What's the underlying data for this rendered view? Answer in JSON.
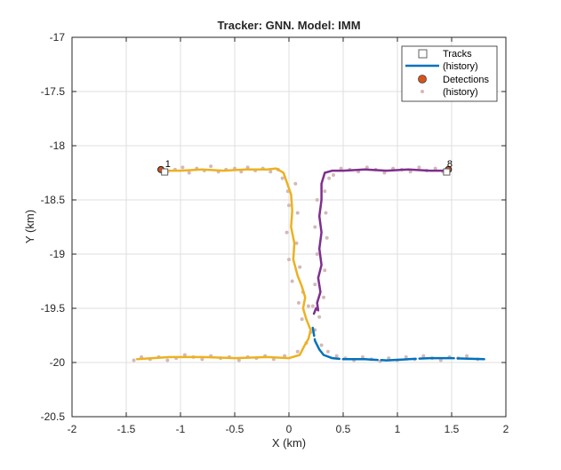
{
  "chart_data": {
    "type": "line",
    "title": "Tracker: GNN. Model: IMM",
    "xlabel": "X (km)",
    "ylabel": "Y (km)",
    "xlim": [
      -2,
      2
    ],
    "ylim": [
      -20.5,
      -17
    ],
    "xticks": [
      -2,
      -1.5,
      -1,
      -0.5,
      0,
      0.5,
      1,
      1.5,
      2
    ],
    "xtick_labels": [
      "-2",
      "-1.5",
      "-1",
      "-0.5",
      "0",
      "0.5",
      "1",
      "1.5",
      "2"
    ],
    "yticks": [
      -20.5,
      -20,
      -19.5,
      -19,
      -18.5,
      -18,
      -17.5,
      -17
    ],
    "ytick_labels": [
      "-20.5",
      "-20",
      "-19.5",
      "-19",
      "-18.5",
      "-18",
      "-17.5",
      "-17"
    ],
    "grid": true,
    "legend_position": "top-right",
    "legend": [
      {
        "label": "Tracks",
        "marker": "square"
      },
      {
        "label": "(history)",
        "marker": "line"
      },
      {
        "label": "Detections",
        "marker": "filled-circle"
      },
      {
        "label": "(history)",
        "marker": "small-dot"
      }
    ],
    "colors": {
      "axes": "#262626",
      "grid": "#dfdfdf",
      "track_1": "#edb120",
      "track_8": "#7e2f8e",
      "track_other": "#0072bd",
      "detection": "#d95319",
      "detection_history": "#d5b8b8"
    },
    "series": [
      {
        "name": "1",
        "x": [
          -1.15,
          -1.0,
          -0.8,
          -0.6,
          -0.4,
          -0.2,
          -0.12,
          -0.05,
          0.02,
          0.03,
          0.02,
          0.05,
          0.04,
          0.08,
          0.12,
          0.15,
          0.13,
          0.16,
          0.2,
          0.18,
          0.14,
          0.1,
          0.0,
          -0.2,
          -0.5,
          -0.8,
          -1.1,
          -1.4
        ],
        "y": [
          -18.23,
          -18.23,
          -18.22,
          -18.23,
          -18.22,
          -18.22,
          -18.21,
          -18.25,
          -18.45,
          -18.6,
          -18.75,
          -18.9,
          -19.05,
          -19.2,
          -19.3,
          -19.4,
          -19.5,
          -19.6,
          -19.7,
          -19.78,
          -19.85,
          -19.93,
          -19.96,
          -19.95,
          -19.96,
          -19.95,
          -19.95,
          -19.97
        ]
      },
      {
        "name": "8",
        "x": [
          1.45,
          1.3,
          1.1,
          0.9,
          0.7,
          0.5,
          0.4,
          0.33,
          0.3,
          0.3,
          0.28,
          0.3,
          0.28,
          0.3,
          0.27,
          0.29,
          0.26,
          0.27,
          0.25,
          0.23
        ],
        "y": [
          -18.23,
          -18.23,
          -18.22,
          -18.23,
          -18.22,
          -18.23,
          -18.23,
          -18.25,
          -18.35,
          -18.5,
          -18.65,
          -18.8,
          -18.95,
          -19.1,
          -19.22,
          -19.35,
          -19.45,
          -19.52,
          -19.5,
          -19.55
        ]
      },
      {
        "name": "",
        "x": [
          0.22,
          0.24,
          0.28,
          0.32,
          0.4,
          0.5,
          0.7,
          0.9,
          1.1,
          1.3,
          1.5,
          1.8
        ],
        "y": [
          -19.68,
          -19.8,
          -19.88,
          -19.93,
          -19.96,
          -19.97,
          -19.97,
          -19.98,
          -19.97,
          -19.96,
          -19.96,
          -19.97
        ]
      }
    ],
    "tracks": [
      {
        "label": "1",
        "x": -1.15,
        "y": -18.23
      },
      {
        "label": "8",
        "x": 1.45,
        "y": -18.23
      }
    ],
    "detections": [
      {
        "x": -1.18,
        "y": -18.22
      },
      {
        "x": 1.47,
        "y": -18.22
      }
    ],
    "detection_history": [
      {
        "x": -1.12,
        "y": -18.24
      },
      {
        "x": -1.05,
        "y": -18.22
      },
      {
        "x": -0.98,
        "y": -18.2
      },
      {
        "x": -0.92,
        "y": -18.25
      },
      {
        "x": -0.85,
        "y": -18.21
      },
      {
        "x": -0.78,
        "y": -18.23
      },
      {
        "x": -0.72,
        "y": -18.19
      },
      {
        "x": -0.65,
        "y": -18.24
      },
      {
        "x": -0.58,
        "y": -18.22
      },
      {
        "x": -0.5,
        "y": -18.21
      },
      {
        "x": -0.44,
        "y": -18.24
      },
      {
        "x": -0.38,
        "y": -18.2
      },
      {
        "x": -0.31,
        "y": -18.23
      },
      {
        "x": -0.24,
        "y": -18.21
      },
      {
        "x": -0.17,
        "y": -18.24
      },
      {
        "x": -0.1,
        "y": -18.22
      },
      {
        "x": -0.06,
        "y": -18.3
      },
      {
        "x": -0.01,
        "y": -18.42
      },
      {
        "x": 0.06,
        "y": -18.35
      },
      {
        "x": 0.0,
        "y": -18.55
      },
      {
        "x": 0.08,
        "y": -18.62
      },
      {
        "x": -0.02,
        "y": -18.8
      },
      {
        "x": 0.07,
        "y": -18.9
      },
      {
        "x": 0.0,
        "y": -19.05
      },
      {
        "x": 0.1,
        "y": -19.12
      },
      {
        "x": 0.03,
        "y": -19.25
      },
      {
        "x": 0.13,
        "y": -19.35
      },
      {
        "x": 0.09,
        "y": -19.45
      },
      {
        "x": 0.18,
        "y": -19.48
      },
      {
        "x": 0.12,
        "y": -19.6
      },
      {
        "x": 0.2,
        "y": -19.72
      },
      {
        "x": 0.16,
        "y": -19.82
      },
      {
        "x": 0.08,
        "y": -19.9
      },
      {
        "x": -0.04,
        "y": -19.94
      },
      {
        "x": -0.14,
        "y": -19.97
      },
      {
        "x": -0.22,
        "y": -19.94
      },
      {
        "x": -0.3,
        "y": -19.96
      },
      {
        "x": -0.38,
        "y": -19.95
      },
      {
        "x": -0.46,
        "y": -19.98
      },
      {
        "x": -0.55,
        "y": -19.95
      },
      {
        "x": -0.63,
        "y": -19.96
      },
      {
        "x": -0.72,
        "y": -19.94
      },
      {
        "x": -0.8,
        "y": -19.97
      },
      {
        "x": -0.88,
        "y": -19.95
      },
      {
        "x": -0.96,
        "y": -19.93
      },
      {
        "x": -1.04,
        "y": -19.96
      },
      {
        "x": -1.12,
        "y": -19.98
      },
      {
        "x": -1.2,
        "y": -19.95
      },
      {
        "x": -1.28,
        "y": -19.97
      },
      {
        "x": -1.36,
        "y": -19.95
      },
      {
        "x": -1.43,
        "y": -19.98
      },
      {
        "x": 1.42,
        "y": -18.24
      },
      {
        "x": 1.35,
        "y": -18.21
      },
      {
        "x": 1.27,
        "y": -18.23
      },
      {
        "x": 1.2,
        "y": -18.2
      },
      {
        "x": 1.12,
        "y": -18.24
      },
      {
        "x": 1.04,
        "y": -18.22
      },
      {
        "x": 0.96,
        "y": -18.21
      },
      {
        "x": 0.88,
        "y": -18.25
      },
      {
        "x": 0.8,
        "y": -18.22
      },
      {
        "x": 0.72,
        "y": -18.2
      },
      {
        "x": 0.64,
        "y": -18.24
      },
      {
        "x": 0.56,
        "y": -18.22
      },
      {
        "x": 0.48,
        "y": -18.21
      },
      {
        "x": 0.41,
        "y": -18.27
      },
      {
        "x": 0.37,
        "y": -18.3
      },
      {
        "x": 0.33,
        "y": -18.42
      },
      {
        "x": 0.26,
        "y": -18.5
      },
      {
        "x": 0.34,
        "y": -18.62
      },
      {
        "x": 0.24,
        "y": -18.75
      },
      {
        "x": 0.35,
        "y": -18.85
      },
      {
        "x": 0.26,
        "y": -19.0
      },
      {
        "x": 0.33,
        "y": -19.15
      },
      {
        "x": 0.24,
        "y": -19.28
      },
      {
        "x": 0.32,
        "y": -19.4
      },
      {
        "x": 0.22,
        "y": -19.48
      },
      {
        "x": 0.28,
        "y": -19.58
      },
      {
        "x": 0.24,
        "y": -19.7
      },
      {
        "x": 0.3,
        "y": -19.84
      },
      {
        "x": 0.36,
        "y": -19.9
      },
      {
        "x": 0.44,
        "y": -19.94
      },
      {
        "x": 0.52,
        "y": -19.96
      },
      {
        "x": 0.6,
        "y": -19.98
      },
      {
        "x": 0.68,
        "y": -19.95
      },
      {
        "x": 0.76,
        "y": -19.97
      },
      {
        "x": 0.84,
        "y": -19.99
      },
      {
        "x": 0.92,
        "y": -19.96
      },
      {
        "x": 1.0,
        "y": -19.98
      },
      {
        "x": 1.08,
        "y": -19.95
      },
      {
        "x": 1.16,
        "y": -19.97
      },
      {
        "x": 1.24,
        "y": -19.94
      },
      {
        "x": 1.32,
        "y": -19.96
      },
      {
        "x": 1.4,
        "y": -19.98
      },
      {
        "x": 1.48,
        "y": -19.95
      },
      {
        "x": 1.56,
        "y": -19.96
      },
      {
        "x": 1.64,
        "y": -19.94
      },
      {
        "x": 1.74,
        "y": -19.97
      }
    ]
  }
}
